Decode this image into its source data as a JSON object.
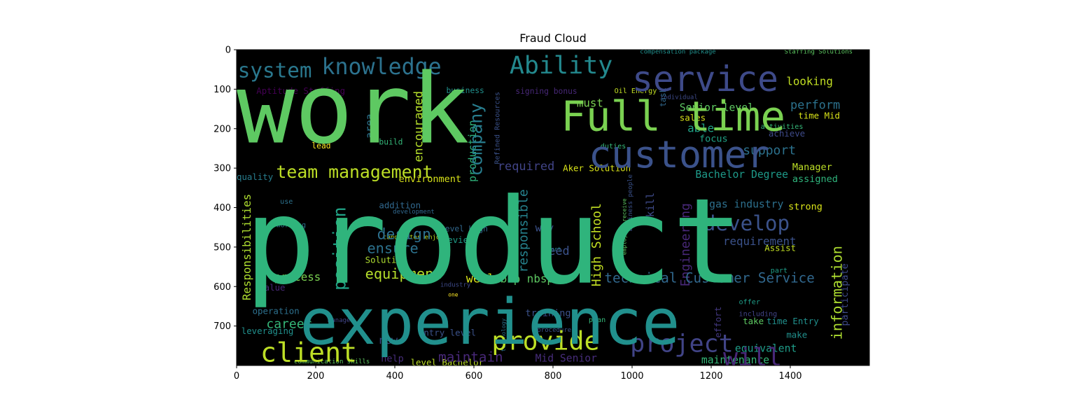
{
  "chart_data": {
    "type": "wordcloud",
    "title": "Fraud Cloud",
    "xlabel": "",
    "ylabel": "",
    "xlim": [
      0,
      1600
    ],
    "ylim": [
      800,
      0
    ],
    "x_ticks": [
      0,
      200,
      400,
      600,
      800,
      1000,
      1200,
      1400
    ],
    "y_ticks": [
      0,
      100,
      200,
      300,
      400,
      500,
      600,
      700
    ],
    "background": "#000000",
    "words": [
      {
        "text": "product",
        "x": 20,
        "y": 590,
        "size": 300,
        "color": "#2fb47c"
      },
      {
        "text": "work",
        "x": 0,
        "y": 235,
        "size": 245,
        "color": "#5ec962"
      },
      {
        "text": "experience",
        "x": 160,
        "y": 745,
        "size": 160,
        "color": "#21908d"
      },
      {
        "text": "Full time",
        "x": 820,
        "y": 205,
        "size": 105,
        "color": "#7ad151"
      },
      {
        "text": "customer",
        "x": 890,
        "y": 298,
        "size": 95,
        "color": "#3b528b"
      },
      {
        "text": "service",
        "x": 1000,
        "y": 105,
        "size": 88,
        "color": "#3e4a89"
      },
      {
        "text": "Ability",
        "x": 690,
        "y": 60,
        "size": 62,
        "color": "#23898e"
      },
      {
        "text": "knowledge",
        "x": 215,
        "y": 62,
        "size": 56,
        "color": "#2c728e"
      },
      {
        "text": "system",
        "x": 3,
        "y": 70,
        "size": 52,
        "color": "#2a788e"
      },
      {
        "text": "client",
        "x": 60,
        "y": 790,
        "size": 68,
        "color": "#bddf26"
      },
      {
        "text": "provide",
        "x": 645,
        "y": 760,
        "size": 65,
        "color": "#bddf26"
      },
      {
        "text": "project",
        "x": 995,
        "y": 765,
        "size": 62,
        "color": "#414487"
      },
      {
        "text": "will",
        "x": 1230,
        "y": 800,
        "size": 62,
        "color": "#482878"
      },
      {
        "text": "develop",
        "x": 1180,
        "y": 458,
        "size": 52,
        "color": "#3b528b"
      },
      {
        "text": "team management",
        "x": 100,
        "y": 325,
        "size": 44,
        "color": "#bddf26"
      },
      {
        "text": "company",
        "x": 620,
        "y": 320,
        "size": 44,
        "color": "#287d8e"
      },
      {
        "text": "position",
        "x": 275,
        "y": 610,
        "size": 44,
        "color": "#20a386"
      },
      {
        "text": "equipment",
        "x": 325,
        "y": 580,
        "size": 36,
        "color": "#b5de2b"
      },
      {
        "text": "design",
        "x": 355,
        "y": 480,
        "size": 38,
        "color": "#2d708e"
      },
      {
        "text": "ensure",
        "x": 330,
        "y": 515,
        "size": 36,
        "color": "#2c728e"
      },
      {
        "text": "technical Customer Service",
        "x": 930,
        "y": 590,
        "size": 34,
        "color": "#31688e"
      },
      {
        "text": "information",
        "x": 1530,
        "y": 735,
        "size": 36,
        "color": "#addc30"
      },
      {
        "text": "Engineering",
        "x": 1145,
        "y": 600,
        "size": 32,
        "color": "#482878"
      },
      {
        "text": "High School",
        "x": 920,
        "y": 600,
        "size": 32,
        "color": "#c2df23"
      },
      {
        "text": "responsible",
        "x": 735,
        "y": 565,
        "size": 32,
        "color": "#26828e"
      },
      {
        "text": "Responsibilities",
        "x": 35,
        "y": 635,
        "size": 28,
        "color": "#addc30"
      },
      {
        "text": "career",
        "x": 75,
        "y": 705,
        "size": 32,
        "color": "#35b779"
      },
      {
        "text": "maintain",
        "x": 510,
        "y": 790,
        "size": 34,
        "color": "#482878"
      },
      {
        "text": "process",
        "x": 95,
        "y": 585,
        "size": 28,
        "color": "#7ad151"
      },
      {
        "text": "encouraged",
        "x": 470,
        "y": 285,
        "size": 30,
        "color": "#b5de2b"
      },
      {
        "text": "production",
        "x": 605,
        "y": 335,
        "size": 26,
        "color": "#2fb47c"
      },
      {
        "text": "required",
        "x": 660,
        "y": 305,
        "size": 30,
        "color": "#414487"
      },
      {
        "text": "support",
        "x": 1280,
        "y": 265,
        "size": 32,
        "color": "#2c728e"
      },
      {
        "text": "perform",
        "x": 1400,
        "y": 150,
        "size": 30,
        "color": "#2c728e"
      },
      {
        "text": "looking",
        "x": 1390,
        "y": 90,
        "size": 28,
        "color": "#c2df23"
      },
      {
        "text": "must",
        "x": 860,
        "y": 145,
        "size": 28,
        "color": "#7ad151"
      },
      {
        "text": "Senior level",
        "x": 1120,
        "y": 155,
        "size": 26,
        "color": "#5ec962"
      },
      {
        "text": "able",
        "x": 1140,
        "y": 208,
        "size": 28,
        "color": "#20a386"
      },
      {
        "text": "Bachelor Degree",
        "x": 1160,
        "y": 325,
        "size": 26,
        "color": "#1e9b8a"
      },
      {
        "text": "requirement",
        "x": 1230,
        "y": 495,
        "size": 28,
        "color": "#3b528b"
      },
      {
        "text": "gas industry",
        "x": 1195,
        "y": 400,
        "size": 26,
        "color": "#2d708e"
      },
      {
        "text": "strong",
        "x": 1395,
        "y": 405,
        "size": 24,
        "color": "#d8e219"
      },
      {
        "text": "Manager",
        "x": 1405,
        "y": 305,
        "size": 24,
        "color": "#bddf26"
      },
      {
        "text": "assigned",
        "x": 1405,
        "y": 335,
        "size": 24,
        "color": "#2fb47c"
      },
      {
        "text": "need",
        "x": 770,
        "y": 520,
        "size": 30,
        "color": "#3b528b"
      },
      {
        "text": "nbsp nbsp",
        "x": 650,
        "y": 590,
        "size": 28,
        "color": "#5ec962"
      },
      {
        "text": "well",
        "x": 580,
        "y": 590,
        "size": 30,
        "color": "#d8e219"
      },
      {
        "text": "maintenance",
        "x": 1175,
        "y": 795,
        "size": 26,
        "color": "#35b779"
      },
      {
        "text": "equivalent",
        "x": 1260,
        "y": 765,
        "size": 26,
        "color": "#1f9e89"
      },
      {
        "text": "Mid Senior",
        "x": 755,
        "y": 790,
        "size": 26,
        "color": "#472d7b"
      },
      {
        "text": "training",
        "x": 730,
        "y": 675,
        "size": 24,
        "color": "#3b528b"
      },
      {
        "text": "participate",
        "x": 1545,
        "y": 700,
        "size": 24,
        "color": "#3e4a89"
      },
      {
        "text": "skill",
        "x": 1055,
        "y": 440,
        "size": 26,
        "color": "#3e4a89"
      },
      {
        "text": "focus",
        "x": 1170,
        "y": 233,
        "size": 24,
        "color": "#20a386"
      },
      {
        "text": "sales",
        "x": 1120,
        "y": 180,
        "size": 22,
        "color": "#d8e219"
      },
      {
        "text": "Aker Solution",
        "x": 825,
        "y": 308,
        "size": 22,
        "color": "#d8e219"
      },
      {
        "text": "environment",
        "x": 410,
        "y": 335,
        "size": 24,
        "color": "#d8e219"
      },
      {
        "text": "Assist",
        "x": 1335,
        "y": 510,
        "size": 22,
        "color": "#c2df23"
      },
      {
        "text": "help",
        "x": 365,
        "y": 790,
        "size": 24,
        "color": "#472d7b"
      },
      {
        "text": "new",
        "x": 360,
        "y": 745,
        "size": 26,
        "color": "#3e4a89"
      },
      {
        "text": "leveraging",
        "x": 12,
        "y": 720,
        "size": 22,
        "color": "#21908d"
      },
      {
        "text": "operation",
        "x": 40,
        "y": 670,
        "size": 22,
        "color": "#2d708e"
      },
      {
        "text": "value",
        "x": 57,
        "y": 610,
        "size": 22,
        "color": "#482878"
      },
      {
        "text": "quality",
        "x": 0,
        "y": 330,
        "size": 22,
        "color": "#287d8e"
      },
      {
        "text": "Aptitude Staffing",
        "x": 50,
        "y": 112,
        "size": 22,
        "color": "#440154"
      },
      {
        "text": "business",
        "x": 530,
        "y": 110,
        "size": 20,
        "color": "#21908d"
      },
      {
        "text": "signing bonus",
        "x": 705,
        "y": 112,
        "size": 20,
        "color": "#482878"
      },
      {
        "text": "Oil Energy",
        "x": 955,
        "y": 110,
        "size": 18,
        "color": "#c2df23"
      },
      {
        "text": "time Mid",
        "x": 1420,
        "y": 175,
        "size": 22,
        "color": "#d8e219"
      },
      {
        "text": "area",
        "x": 345,
        "y": 225,
        "size": 26,
        "color": "#2c728e"
      },
      {
        "text": "build",
        "x": 360,
        "y": 240,
        "size": 20,
        "color": "#35b779"
      },
      {
        "text": "lead",
        "x": 190,
        "y": 250,
        "size": 20,
        "color": "#fde725"
      },
      {
        "text": "addition",
        "x": 360,
        "y": 402,
        "size": 22,
        "color": "#31688e"
      },
      {
        "text": "use",
        "x": 110,
        "y": 390,
        "size": 18,
        "color": "#2c728e"
      },
      {
        "text": "working",
        "x": 100,
        "y": 450,
        "size": 18,
        "color": "#2c728e"
      },
      {
        "text": "Solution",
        "x": 325,
        "y": 540,
        "size": 22,
        "color": "#addc30"
      },
      {
        "text": "review",
        "x": 520,
        "y": 490,
        "size": 22,
        "color": "#1f9e89"
      },
      {
        "text": "level High",
        "x": 515,
        "y": 460,
        "size": 20,
        "color": "#31688e"
      },
      {
        "text": "way",
        "x": 755,
        "y": 460,
        "size": 26,
        "color": "#3b528b"
      },
      {
        "text": "Entry level",
        "x": 460,
        "y": 725,
        "size": 22,
        "color": "#3b528b"
      },
      {
        "text": "level Bachelor",
        "x": 440,
        "y": 800,
        "size": 22,
        "color": "#bddf26"
      },
      {
        "text": "time Entry",
        "x": 1340,
        "y": 695,
        "size": 22,
        "color": "#21908d"
      },
      {
        "text": "make",
        "x": 1390,
        "y": 730,
        "size": 22,
        "color": "#21908d"
      },
      {
        "text": "take",
        "x": 1280,
        "y": 695,
        "size": 22,
        "color": "#5ec962"
      },
      {
        "text": "offer",
        "x": 1270,
        "y": 645,
        "size": 18,
        "color": "#1f9e89"
      },
      {
        "text": "including",
        "x": 1270,
        "y": 675,
        "size": 18,
        "color": "#414487"
      },
      {
        "text": "plan",
        "x": 890,
        "y": 690,
        "size": 18,
        "color": "#35b779"
      },
      {
        "text": "part",
        "x": 1350,
        "y": 565,
        "size": 18,
        "color": "#1f9e89"
      },
      {
        "text": "effort",
        "x": 1225,
        "y": 730,
        "size": 22,
        "color": "#443983"
      },
      {
        "text": "achieve",
        "x": 1345,
        "y": 220,
        "size": 22,
        "color": "#3e4a89"
      },
      {
        "text": "activities",
        "x": 1325,
        "y": 200,
        "size": 18,
        "color": "#35b779"
      },
      {
        "text": "duties",
        "x": 920,
        "y": 250,
        "size": 18,
        "color": "#35b779"
      },
      {
        "text": "individual",
        "x": 1070,
        "y": 125,
        "size": 16,
        "color": "#3e4a89"
      },
      {
        "text": "compensation package",
        "x": 1020,
        "y": 10,
        "size": 16,
        "color": "#21908d"
      },
      {
        "text": "Staffing Solutions",
        "x": 1385,
        "y": 10,
        "size": 16,
        "color": "#5ec962"
      },
      {
        "text": "communication skills",
        "x": 145,
        "y": 795,
        "size": 16,
        "color": "#5ec962"
      },
      {
        "text": "candidates enjoy",
        "x": 370,
        "y": 480,
        "size": 16,
        "color": "#bddf26"
      },
      {
        "text": "development",
        "x": 395,
        "y": 415,
        "size": 16,
        "color": "#31688e"
      },
      {
        "text": "business people",
        "x": 1000,
        "y": 460,
        "size": 16,
        "color": "#3b528b"
      },
      {
        "text": "employees receive",
        "x": 985,
        "y": 520,
        "size": 14,
        "color": "#5ec962"
      },
      {
        "text": "procedure",
        "x": 760,
        "y": 715,
        "size": 16,
        "color": "#3b528b"
      },
      {
        "text": "Refined Resources",
        "x": 665,
        "y": 290,
        "size": 18,
        "color": "#3b528b"
      },
      {
        "text": "report",
        "x": 770,
        "y": 510,
        "size": 14,
        "color": "#21908d"
      },
      {
        "text": "industry",
        "x": 515,
        "y": 600,
        "size": 16,
        "color": "#3e4a89"
      },
      {
        "text": "one",
        "x": 535,
        "y": 625,
        "size": 14,
        "color": "#fde725"
      },
      {
        "text": "manage",
        "x": 230,
        "y": 690,
        "size": 16,
        "color": "#414487"
      },
      {
        "text": "technology",
        "x": 680,
        "y": 765,
        "size": 14,
        "color": "#2c728e"
      },
      {
        "text": "task",
        "x": 1085,
        "y": 145,
        "size": 20,
        "color": "#31688e"
      }
    ]
  }
}
